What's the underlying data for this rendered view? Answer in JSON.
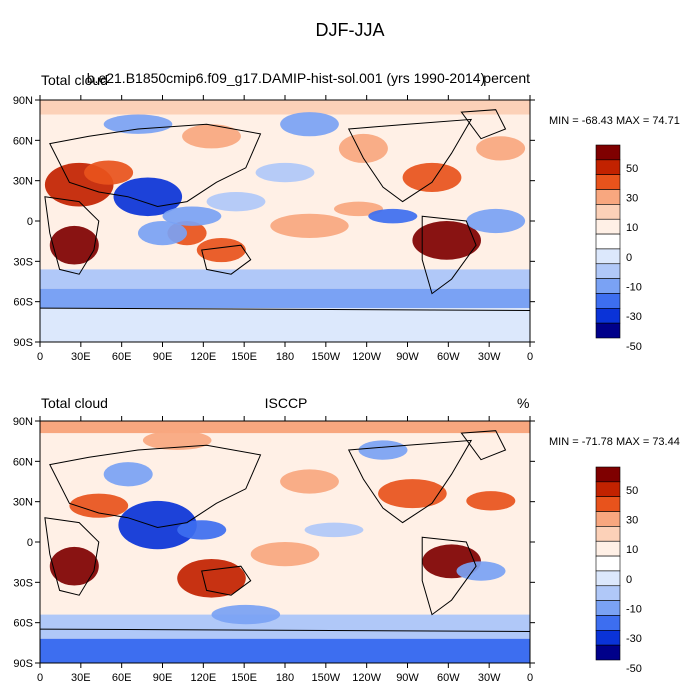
{
  "figure_title": "DJF-JJA",
  "x_ticks": [
    "0",
    "30E",
    "60E",
    "90E",
    "120E",
    "150E",
    "180",
    "150W",
    "120W",
    "90W",
    "60W",
    "30W",
    "0"
  ],
  "y_ticks": [
    "90N",
    "60N",
    "30N",
    "0",
    "30S",
    "60S",
    "90S"
  ],
  "colorbar_labels": [
    "50",
    "30",
    "10",
    "0",
    "-10",
    "-30",
    "-50"
  ],
  "colorbar_colors": [
    "#7f0000",
    "#c22200",
    "#e8531c",
    "#f8a77f",
    "#fcd1b8",
    "#fff0e6",
    "#ffffff",
    "#dce8fc",
    "#b0c8f8",
    "#7aa2f4",
    "#3d6ef0",
    "#0a33d8",
    "#00008a"
  ],
  "panels": [
    {
      "left_label": "Total cloud",
      "center_label": "b.e21.B1850cmip6.f09_g17.DAMIP-hist-sol.001 (yrs 1990-2014)",
      "right_label": "percent",
      "minmax": "MIN = -68.43 MAX =  74.71"
    },
    {
      "left_label": "Total cloud",
      "center_label": "ISCCP",
      "right_label": "%",
      "minmax": "MIN = -71.78 MAX =  73.44"
    }
  ]
}
